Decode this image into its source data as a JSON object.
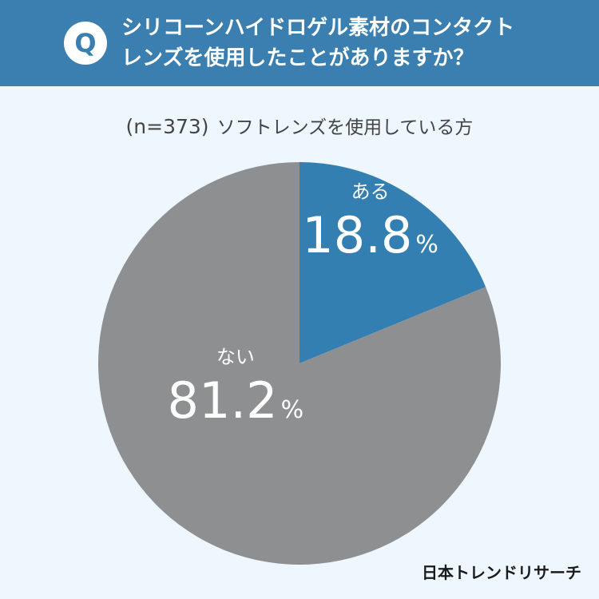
{
  "header": {
    "badge": "Q",
    "question_line1": "シリコーンハイドロゲル素材のコンタクト",
    "question_line2": "レンズを使用したことがありますか？"
  },
  "sample": {
    "n_label": "(n=373)",
    "group": "ソフトレンズを使用している方"
  },
  "brand": "日本トレンドリサーチ",
  "colors": {
    "header": "#3a7fb0",
    "aru": "#337fb2",
    "nai": "#8e8f91",
    "background": "#eef7fd"
  },
  "chart_data": {
    "type": "pie",
    "slices": [
      {
        "label": "ある",
        "value": 18.8,
        "display": "18.8",
        "unit": "%",
        "color": "#337fb2"
      },
      {
        "label": "ない",
        "value": 81.2,
        "display": "81.2",
        "unit": "%",
        "color": "#8e8f91"
      }
    ],
    "start": "12 o'clock",
    "direction": "clockwise"
  }
}
